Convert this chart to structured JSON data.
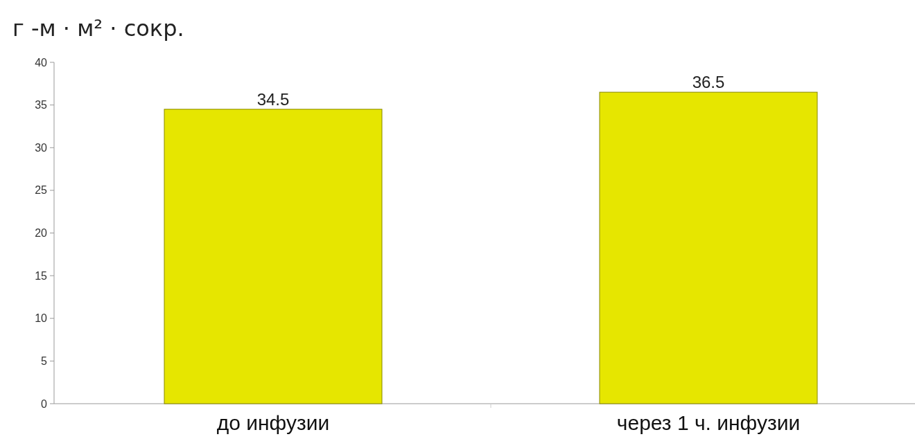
{
  "chart_data": {
    "type": "bar",
    "title": "г -м · м² · сокр.",
    "categories": [
      "до инфузии",
      "через 1 ч. инфузии"
    ],
    "values": [
      34.5,
      36.5
    ],
    "color": "#e6e600",
    "ylim": [
      0,
      40
    ],
    "yticks": [
      0,
      5,
      10,
      15,
      20,
      25,
      30,
      35,
      40
    ],
    "grid": false,
    "data_labels": true
  }
}
